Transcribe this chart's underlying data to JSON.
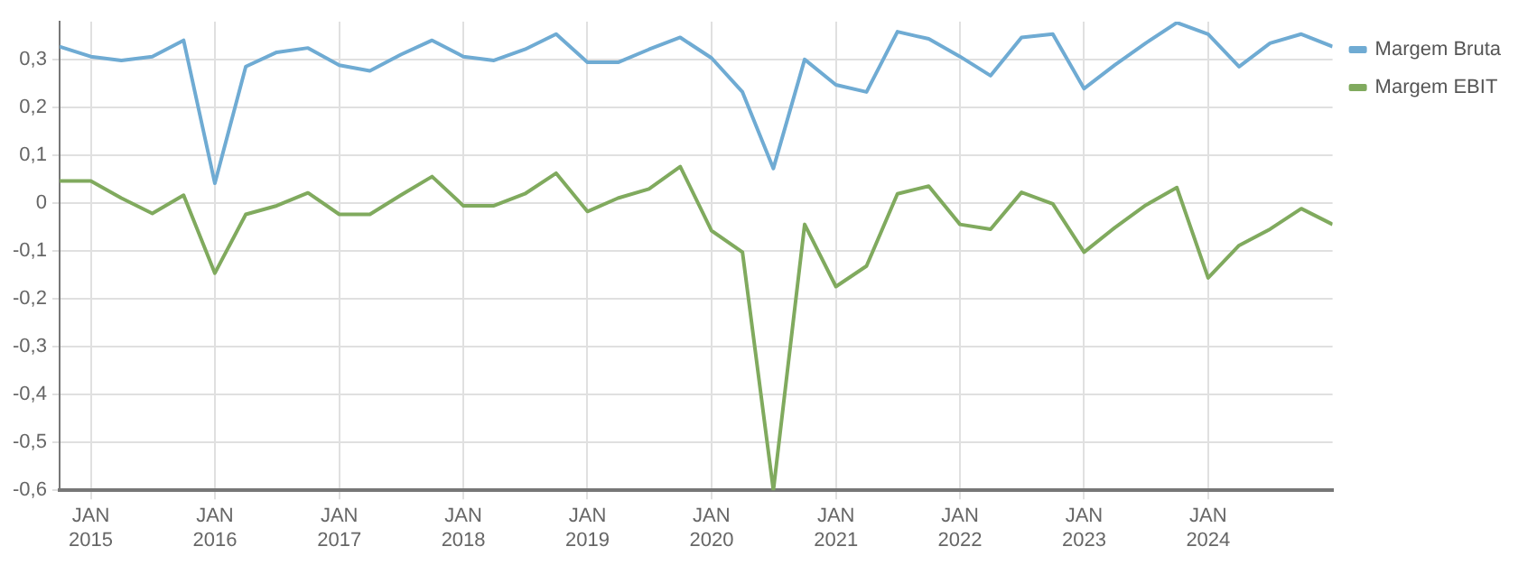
{
  "chart_data": {
    "type": "line",
    "x": [
      "2014-10",
      "2015-01",
      "2015-04",
      "2015-07",
      "2015-10",
      "2016-01",
      "2016-04",
      "2016-07",
      "2016-10",
      "2017-01",
      "2017-04",
      "2017-07",
      "2017-10",
      "2018-01",
      "2018-04",
      "2018-07",
      "2018-10",
      "2019-01",
      "2019-04",
      "2019-07",
      "2019-10",
      "2020-01",
      "2020-04",
      "2020-07",
      "2020-10",
      "2021-01",
      "2021-04",
      "2021-07",
      "2021-10",
      "2022-01",
      "2022-04",
      "2022-07",
      "2022-10",
      "2023-01",
      "2023-04",
      "2023-07",
      "2023-10",
      "2024-01",
      "2024-04",
      "2024-07",
      "2024-10",
      "2025-01"
    ],
    "series": [
      {
        "name": "Margem Bruta",
        "color": "#6fabd3",
        "values": [
          0.328,
          0.307,
          0.299,
          0.307,
          0.341,
          0.042,
          0.286,
          0.316,
          0.325,
          0.289,
          0.277,
          0.311,
          0.341,
          0.307,
          0.299,
          0.322,
          0.354,
          0.295,
          0.295,
          0.322,
          0.347,
          0.304,
          0.233,
          0.073,
          0.301,
          0.248,
          0.233,
          0.359,
          0.344,
          0.307,
          0.267,
          0.347,
          0.354,
          0.24,
          0.289,
          0.335,
          0.378,
          0.354,
          0.286,
          0.335,
          0.354,
          0.328
        ]
      },
      {
        "name": "Margem EBIT",
        "color": "#80aa5e",
        "values": [
          0.047,
          0.047,
          0.011,
          -0.021,
          0.017,
          -0.146,
          -0.023,
          -0.005,
          0.022,
          -0.023,
          -0.023,
          0.017,
          0.056,
          -0.005,
          -0.005,
          0.02,
          0.063,
          -0.017,
          0.011,
          0.03,
          0.077,
          -0.057,
          -0.102,
          -0.6,
          -0.044,
          -0.174,
          -0.131,
          0.02,
          0.036,
          -0.044,
          -0.054,
          0.023,
          -0.001,
          -0.102,
          -0.051,
          -0.004,
          0.033,
          -0.156,
          -0.088,
          -0.054,
          -0.011,
          -0.044
        ]
      }
    ],
    "xlim": [
      "2014-10",
      "2025-01"
    ],
    "xticks": [
      {
        "value": "2015-01",
        "label": "JAN 2015"
      },
      {
        "value": "2016-01",
        "label": "JAN 2016"
      },
      {
        "value": "2017-01",
        "label": "JAN 2017"
      },
      {
        "value": "2018-01",
        "label": "JAN 2018"
      },
      {
        "value": "2019-01",
        "label": "JAN 2019"
      },
      {
        "value": "2020-01",
        "label": "JAN 2020"
      },
      {
        "value": "2021-01",
        "label": "JAN 2021"
      },
      {
        "value": "2022-01",
        "label": "JAN 2022"
      },
      {
        "value": "2023-01",
        "label": "JAN 2023"
      },
      {
        "value": "2024-01",
        "label": "JAN 2024"
      }
    ],
    "ylim": [
      -0.6,
      0.38
    ],
    "yticks": [
      {
        "value": -0.6,
        "label": "-0,6"
      },
      {
        "value": -0.5,
        "label": "-0,5"
      },
      {
        "value": -0.4,
        "label": "-0,4"
      },
      {
        "value": -0.3,
        "label": "-0,3"
      },
      {
        "value": -0.2,
        "label": "-0,2"
      },
      {
        "value": -0.1,
        "label": "-0,1"
      },
      0,
      {
        "value": 0.1,
        "label": "0,1"
      },
      {
        "value": 0.2,
        "label": "0,2"
      },
      {
        "value": 0.3,
        "label": "0,3"
      }
    ],
    "grid": true,
    "legend": "top right",
    "marker": "none",
    "line_style": "solid"
  }
}
